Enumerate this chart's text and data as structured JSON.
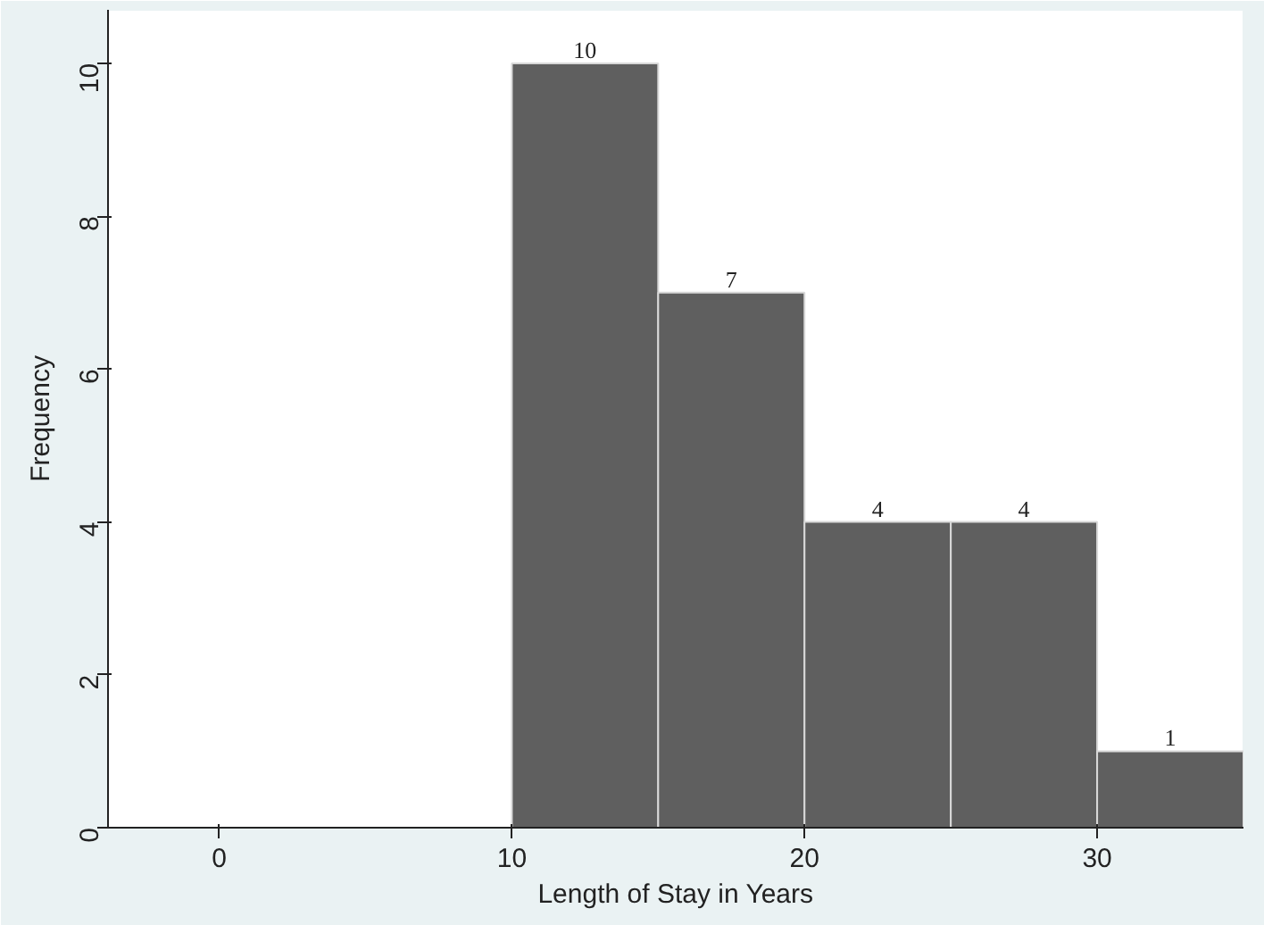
{
  "chart_data": {
    "type": "histogram",
    "xlabel": "Length of Stay in Years",
    "ylabel": "Frequency",
    "bins": [
      10,
      15,
      20,
      25,
      30,
      35
    ],
    "values": [
      10,
      7,
      4,
      4,
      1
    ],
    "color": "#5f5f5f",
    "xlim": [
      -3.8,
      35
    ],
    "xticks": [
      0,
      10,
      20,
      30
    ],
    "ylim": [
      0,
      10.7
    ],
    "yticks": [
      0,
      2,
      4,
      6,
      8,
      10
    ],
    "data_labels": true,
    "grid": false
  }
}
